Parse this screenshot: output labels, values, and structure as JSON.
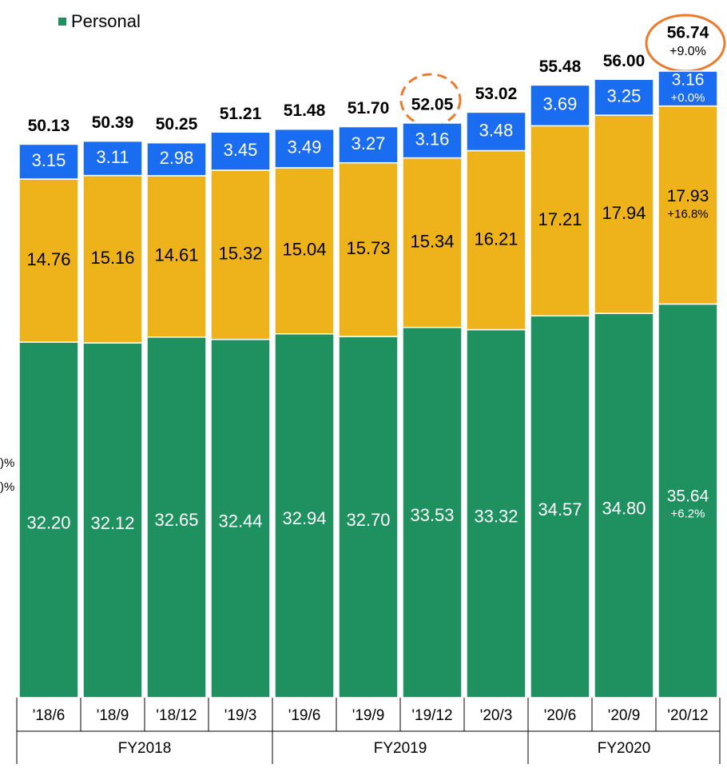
{
  "chart_data": {
    "type": "stacked-bar",
    "left_fragments": [
      ")%",
      ")%"
    ],
    "categories": [
      "'18/6",
      "'18/9",
      "'18/12",
      "'19/3",
      "'19/6",
      "'19/9",
      "'19/12",
      "'20/3",
      "'20/6",
      "'20/9",
      "'20/12"
    ],
    "groups": [
      {
        "label": "FY2018",
        "size": 4
      },
      {
        "label": "FY2019",
        "size": 4
      },
      {
        "label": "FY2020",
        "size": 3
      }
    ],
    "series": [
      {
        "name": "Personal",
        "color": "#1f9160",
        "label_color": "#ffffff",
        "values": [
          32.2,
          32.12,
          32.65,
          32.44,
          32.94,
          32.7,
          33.53,
          33.32,
          34.57,
          34.8,
          35.64
        ],
        "value_labels": [
          "32.20",
          "32.12",
          "32.65",
          "32.44",
          "32.94",
          "32.70",
          "33.53",
          "33.32",
          "34.57",
          "34.80",
          "35.64"
        ],
        "change_label": "+6.2%"
      },
      {
        "color": "#eeb31a",
        "label_color": "#000000",
        "values": [
          14.76,
          15.16,
          14.61,
          15.32,
          15.04,
          15.73,
          15.34,
          16.21,
          17.21,
          17.94,
          17.93
        ],
        "value_labels": [
          "14.76",
          "15.16",
          "14.61",
          "15.32",
          "15.04",
          "15.73",
          "15.34",
          "16.21",
          "17.21",
          "17.94",
          "17.93"
        ],
        "change_label": "+16.8%"
      },
      {
        "color": "#1a6cf0",
        "label_color": "#ffffff",
        "values": [
          3.15,
          3.11,
          2.98,
          3.45,
          3.49,
          3.27,
          3.16,
          3.48,
          3.69,
          3.25,
          3.16
        ],
        "value_labels": [
          "3.15",
          "3.11",
          "2.98",
          "3.45",
          "3.49",
          "3.27",
          "3.16",
          "3.48",
          "3.69",
          "3.25",
          "3.16"
        ],
        "change_label": "+0.0%"
      }
    ],
    "totals": [
      50.13,
      50.39,
      50.25,
      51.21,
      51.48,
      51.7,
      52.05,
      53.02,
      55.48,
      56.0,
      56.74
    ],
    "total_labels": [
      "50.13",
      "50.39",
      "50.25",
      "51.21",
      "51.48",
      "51.70",
      "52.05",
      "53.02",
      "55.48",
      "56.00",
      "56.74"
    ],
    "total_change_label": "+9.0%"
  }
}
